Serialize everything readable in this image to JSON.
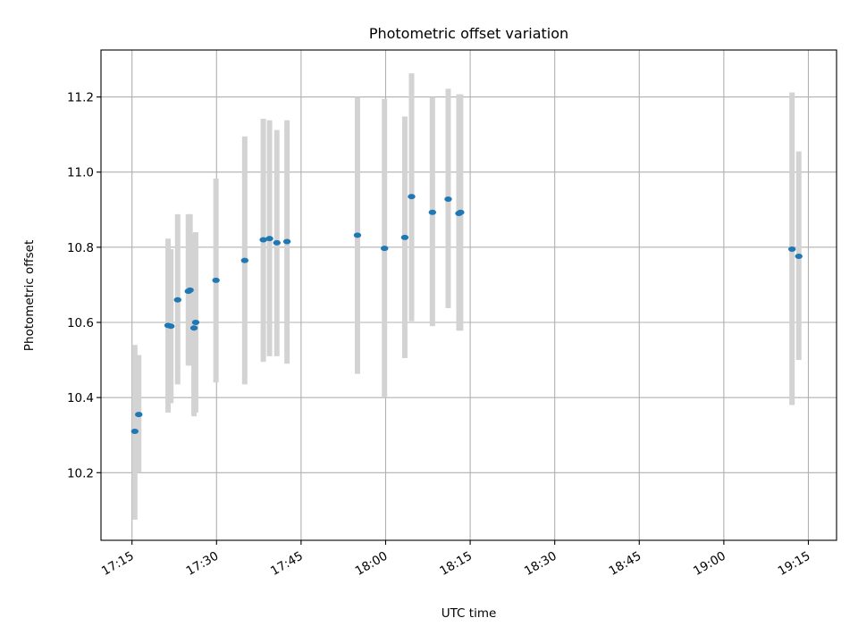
{
  "chart_data": {
    "type": "scatter",
    "title": "Photometric offset variation",
    "xlabel": "UTC time",
    "ylabel": "Photometric offset",
    "x_ticks": [
      "17:15",
      "17:30",
      "17:45",
      "18:00",
      "18:15",
      "18:30",
      "18:45",
      "19:00",
      "19:15"
    ],
    "y_ticks": [
      "10.2",
      "10.4",
      "10.6",
      "10.8",
      "11.0",
      "11.2"
    ],
    "xlim": [
      "17:09:30",
      "19:20:00"
    ],
    "ylim": [
      10.02,
      11.325
    ],
    "grid": true,
    "colors": {
      "point": "#1f77b4",
      "errorbar": "#d3d3d3",
      "grid": "#b0b0b0"
    },
    "series": [
      {
        "x": [
          "17:15:30",
          "17:16:12",
          "17:21:24",
          "17:21:54",
          "17:23:06",
          "17:25:00",
          "17:25:18",
          "17:26:00",
          "17:26:18",
          "17:29:54",
          "17:35:00",
          "17:38:18",
          "17:39:24",
          "17:40:42",
          "17:42:30",
          "17:55:00",
          "17:59:48",
          "18:03:24",
          "18:04:36",
          "18:08:18",
          "18:11:06",
          "18:13:00",
          "18:13:18",
          "19:12:06",
          "19:13:18"
        ],
        "y": [
          10.31,
          10.355,
          10.592,
          10.59,
          10.66,
          10.683,
          10.686,
          10.585,
          10.6,
          10.712,
          10.765,
          10.82,
          10.823,
          10.812,
          10.815,
          10.832,
          10.797,
          10.826,
          10.935,
          10.893,
          10.928,
          10.89,
          10.893,
          10.795,
          10.776
        ],
        "yerr_low": [
          10.075,
          10.2,
          10.36,
          10.385,
          10.435,
          10.485,
          10.485,
          10.35,
          10.36,
          10.44,
          10.435,
          10.495,
          10.51,
          10.51,
          10.49,
          10.463,
          10.4,
          10.505,
          10.603,
          10.59,
          10.638,
          10.578,
          10.578,
          10.38,
          10.5
        ],
        "yerr_high": [
          10.54,
          10.513,
          10.823,
          10.795,
          10.888,
          10.888,
          10.888,
          10.836,
          10.84,
          10.983,
          11.095,
          11.142,
          11.138,
          11.112,
          11.138,
          11.2,
          11.195,
          11.148,
          11.263,
          11.2,
          11.222,
          11.207,
          11.207,
          11.212,
          11.055
        ]
      }
    ]
  }
}
